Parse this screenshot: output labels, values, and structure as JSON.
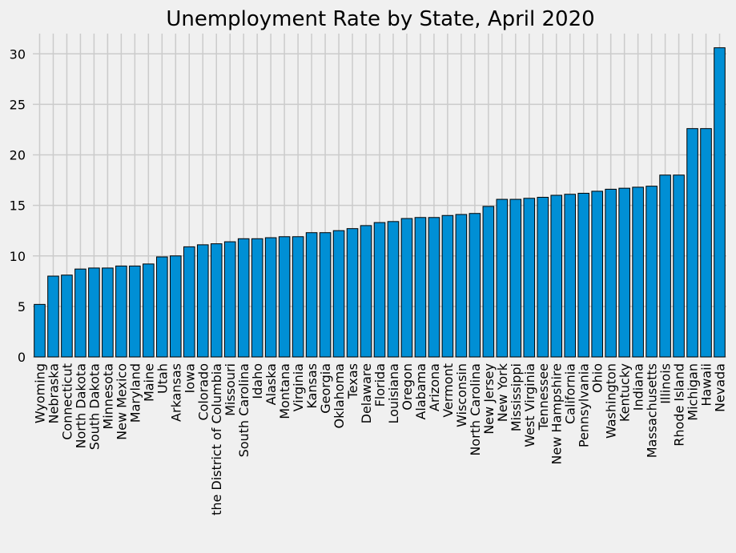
{
  "chart_data": {
    "type": "bar",
    "title": "Unemployment Rate by State, April 2020",
    "xlabel": "",
    "ylabel": "",
    "ylim": [
      0,
      32
    ],
    "yticks": [
      "0",
      "5",
      "10",
      "15",
      "20",
      "25",
      "30"
    ],
    "grid": true,
    "legend": "none",
    "bar_color": "#008fd5",
    "background": "#f0f0f0",
    "categories": [
      "Wyoming",
      "Nebraska",
      "Connecticut",
      "North Dakota",
      "South Dakota",
      "Minnesota",
      "New Mexico",
      "Maryland",
      "Maine",
      "Utah",
      "Arkansas",
      "Iowa",
      "Colorado",
      "the District of Columbia",
      "Missouri",
      "South Carolina",
      "Idaho",
      "Alaska",
      "Montana",
      "Virginia",
      "Kansas",
      "Georgia",
      "Oklahoma",
      "Texas",
      "Delaware",
      "Florida",
      "Louisiana",
      "Oregon",
      "Alabama",
      "Arizona",
      "Vermont",
      "Wisconsin",
      "North Carolina",
      "New Jersey",
      "New York",
      "Mississippi",
      "West Virginia",
      "Tennessee",
      "New Hampshire",
      "California",
      "Pennsylvania",
      "Ohio",
      "Washington",
      "Kentucky",
      "Indiana",
      "Massachusetts",
      "Illinois",
      "Rhode Island",
      "Michigan",
      "Hawaii",
      "Nevada"
    ],
    "values": [
      5.2,
      8.0,
      8.1,
      8.7,
      8.8,
      8.8,
      9.0,
      9.0,
      9.2,
      9.9,
      10.0,
      10.9,
      11.1,
      11.2,
      11.4,
      11.7,
      11.7,
      11.8,
      11.9,
      11.9,
      12.3,
      12.3,
      12.5,
      12.7,
      13.0,
      13.3,
      13.4,
      13.7,
      13.8,
      13.8,
      14.0,
      14.1,
      14.2,
      14.9,
      15.6,
      15.6,
      15.7,
      15.8,
      16.0,
      16.1,
      16.2,
      16.4,
      16.6,
      16.7,
      16.8,
      16.9,
      18.0,
      18.0,
      22.6,
      22.6,
      30.6
    ]
  }
}
